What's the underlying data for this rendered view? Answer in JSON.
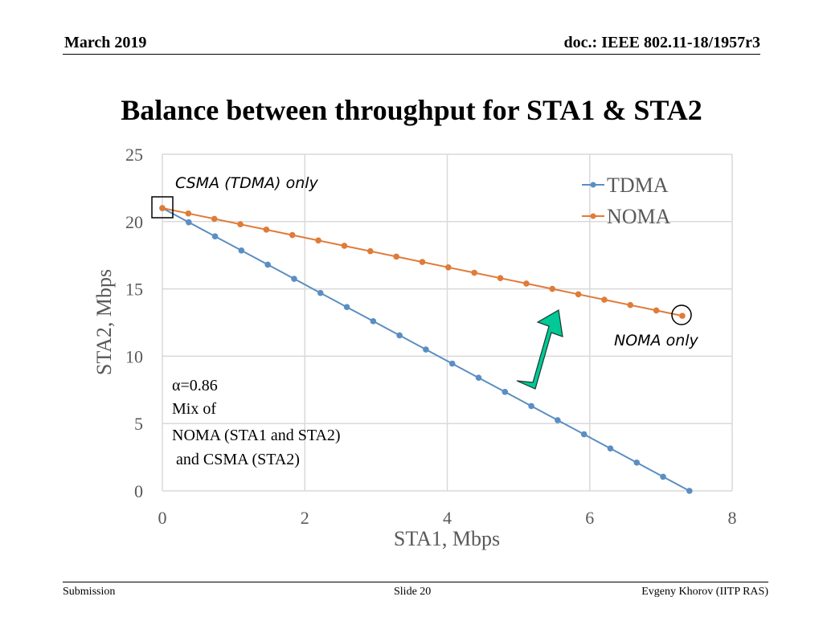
{
  "header": {
    "date": "March 2019",
    "doc": "doc.: IEEE 802.11-18/1957r3"
  },
  "title": "Balance between throughput for STA1 & STA2",
  "footer": {
    "left": "Submission",
    "center": "Slide 20",
    "right": "Evgeny Khorov (IITP RAS)"
  },
  "annotations": {
    "csma_label": "CSMA (TDMA) only",
    "noma_label": "NOMA only",
    "alpha": "α=0.86",
    "mix_line1": "Mix of",
    "mix_line2": "NOMA (STA1 and STA2)",
    "mix_line3": " and CSMA (STA2)"
  },
  "colors": {
    "tdma": "#5b8ec2",
    "noma": "#e07b39",
    "arrow": "#00c896",
    "grid": "#d9d9d9"
  },
  "chart_data": {
    "type": "line",
    "title": "",
    "xlabel": "STA1, Mbps",
    "ylabel": "STA2, Mbps",
    "xlim": [
      0,
      8
    ],
    "ylim": [
      0,
      25
    ],
    "xticks": [
      0,
      2,
      4,
      6,
      8
    ],
    "yticks": [
      0,
      5,
      10,
      15,
      20,
      25
    ],
    "grid": true,
    "legend_position": "top-right",
    "series": [
      {
        "name": "TDMA",
        "color": "#5b8ec2",
        "x": [
          0,
          0.37,
          0.74,
          1.11,
          1.48,
          1.85,
          2.22,
          2.59,
          2.96,
          3.33,
          3.7,
          4.07,
          4.44,
          4.81,
          5.18,
          5.55,
          5.92,
          6.29,
          6.66,
          7.03,
          7.4
        ],
        "y": [
          21.0,
          19.95,
          18.9,
          17.85,
          16.8,
          15.75,
          14.7,
          13.65,
          12.6,
          11.55,
          10.5,
          9.45,
          8.4,
          7.35,
          6.3,
          5.25,
          4.2,
          3.15,
          2.1,
          1.05,
          0
        ]
      },
      {
        "name": "NOMA",
        "color": "#e07b39",
        "x": [
          0,
          0.365,
          0.73,
          1.095,
          1.46,
          1.825,
          2.19,
          2.555,
          2.92,
          3.285,
          3.65,
          4.015,
          4.38,
          4.745,
          5.11,
          5.475,
          5.84,
          6.205,
          6.57,
          6.935,
          7.3
        ],
        "y": [
          21.0,
          20.6,
          20.2,
          19.8,
          19.4,
          19.0,
          18.6,
          18.2,
          17.8,
          17.4,
          17.0,
          16.6,
          16.2,
          15.8,
          15.4,
          15.0,
          14.6,
          14.2,
          13.8,
          13.4,
          13.0
        ]
      }
    ]
  }
}
